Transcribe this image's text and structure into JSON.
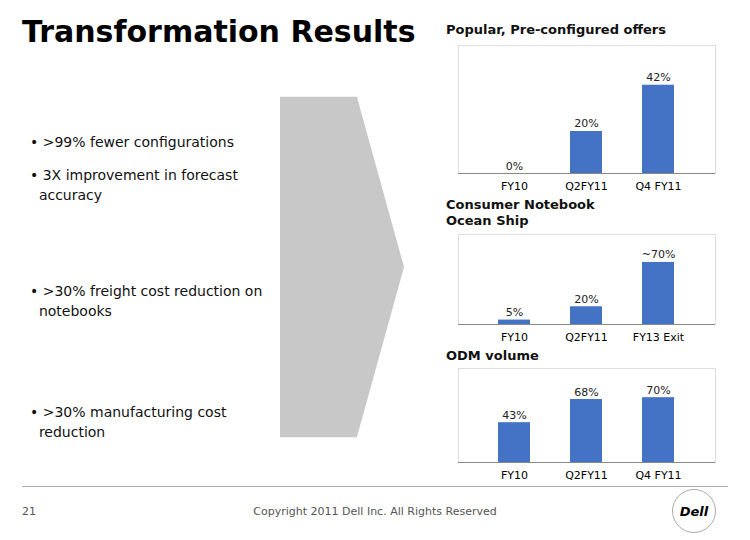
{
  "title": "Transformation Results",
  "annotations": [
    "• >99% fewer configurations",
    "• 3X improvement in forecast\n  accuracy",
    "• >30% freight cost reduction on\n  notebooks",
    "• >30% manufacturing cost\n  reduction",
    "Copyright 2011 Dell Inc. All Rights Reserved",
    "21",
    "Dell"
  ],
  "chart_data": [
    {
      "type": "bar",
      "title": "Popular, Pre-configured offers",
      "categories": [
        "FY10",
        "Q2FY11",
        "Q4 FY11"
      ],
      "values": [
        0,
        20,
        42
      ],
      "value_labels": [
        "0%",
        "20%",
        "42%"
      ],
      "data_labels": true,
      "color": "#4472C4",
      "ylim": [
        0,
        60.9
      ],
      "tick_labels": "x",
      "grid": false
    },
    {
      "type": "bar",
      "title": "Consumer Notebook\nOcean Ship",
      "categories": [
        "FY10",
        "Q2FY11",
        "FY13 Exit"
      ],
      "values": [
        5,
        20,
        70
      ],
      "value_labels": [
        "5%",
        "20%",
        "~70%"
      ],
      "data_labels": true,
      "color": "#4472C4",
      "ylim": [
        0,
        101.5
      ],
      "tick_labels": "x",
      "grid": false
    },
    {
      "type": "bar",
      "title": "ODM volume",
      "categories": [
        "FY10",
        "Q2FY11",
        "Q4 FY11"
      ],
      "values": [
        43,
        68,
        70
      ],
      "value_labels": [
        "43%",
        "68%",
        "70%"
      ],
      "data_labels": true,
      "color": "#4472C4",
      "ylim": [
        0,
        101.5
      ],
      "tick_labels": "x",
      "grid": false
    }
  ]
}
